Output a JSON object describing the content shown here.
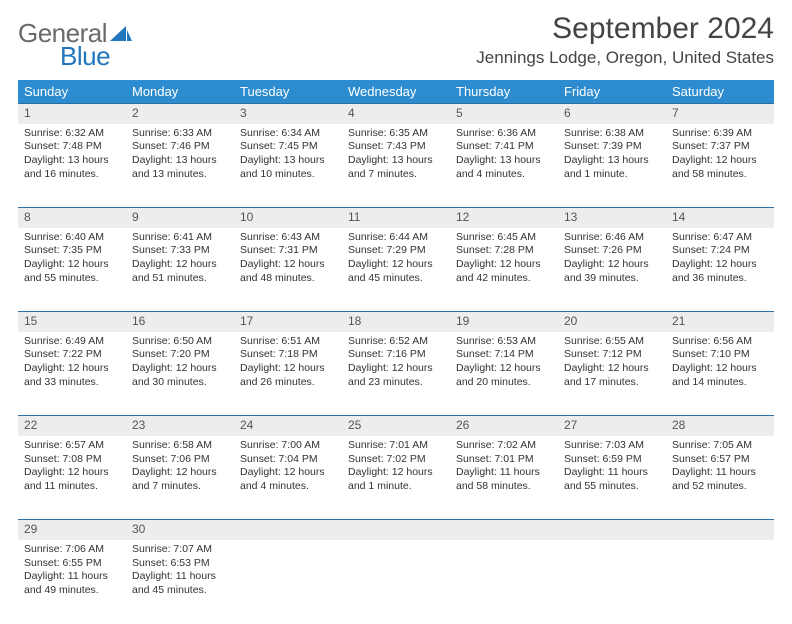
{
  "logo": {
    "text_general": "General",
    "text_blue": "Blue"
  },
  "header": {
    "month_title": "September 2024",
    "location": "Jennings Lodge, Oregon, United States"
  },
  "colors": {
    "header_bg": "#2c8ccf",
    "header_text": "#ffffff",
    "daynum_bg": "#ededed",
    "rule": "#2c6ea0",
    "logo_gray": "#6a6a6a",
    "logo_blue": "#2176bd"
  },
  "weekdays": [
    "Sunday",
    "Monday",
    "Tuesday",
    "Wednesday",
    "Thursday",
    "Friday",
    "Saturday"
  ],
  "weeks": [
    [
      {
        "n": "1",
        "sr": "6:32 AM",
        "ss": "7:48 PM",
        "dl": "13 hours and 16 minutes."
      },
      {
        "n": "2",
        "sr": "6:33 AM",
        "ss": "7:46 PM",
        "dl": "13 hours and 13 minutes."
      },
      {
        "n": "3",
        "sr": "6:34 AM",
        "ss": "7:45 PM",
        "dl": "13 hours and 10 minutes."
      },
      {
        "n": "4",
        "sr": "6:35 AM",
        "ss": "7:43 PM",
        "dl": "13 hours and 7 minutes."
      },
      {
        "n": "5",
        "sr": "6:36 AM",
        "ss": "7:41 PM",
        "dl": "13 hours and 4 minutes."
      },
      {
        "n": "6",
        "sr": "6:38 AM",
        "ss": "7:39 PM",
        "dl": "13 hours and 1 minute."
      },
      {
        "n": "7",
        "sr": "6:39 AM",
        "ss": "7:37 PM",
        "dl": "12 hours and 58 minutes."
      }
    ],
    [
      {
        "n": "8",
        "sr": "6:40 AM",
        "ss": "7:35 PM",
        "dl": "12 hours and 55 minutes."
      },
      {
        "n": "9",
        "sr": "6:41 AM",
        "ss": "7:33 PM",
        "dl": "12 hours and 51 minutes."
      },
      {
        "n": "10",
        "sr": "6:43 AM",
        "ss": "7:31 PM",
        "dl": "12 hours and 48 minutes."
      },
      {
        "n": "11",
        "sr": "6:44 AM",
        "ss": "7:29 PM",
        "dl": "12 hours and 45 minutes."
      },
      {
        "n": "12",
        "sr": "6:45 AM",
        "ss": "7:28 PM",
        "dl": "12 hours and 42 minutes."
      },
      {
        "n": "13",
        "sr": "6:46 AM",
        "ss": "7:26 PM",
        "dl": "12 hours and 39 minutes."
      },
      {
        "n": "14",
        "sr": "6:47 AM",
        "ss": "7:24 PM",
        "dl": "12 hours and 36 minutes."
      }
    ],
    [
      {
        "n": "15",
        "sr": "6:49 AM",
        "ss": "7:22 PM",
        "dl": "12 hours and 33 minutes."
      },
      {
        "n": "16",
        "sr": "6:50 AM",
        "ss": "7:20 PM",
        "dl": "12 hours and 30 minutes."
      },
      {
        "n": "17",
        "sr": "6:51 AM",
        "ss": "7:18 PM",
        "dl": "12 hours and 26 minutes."
      },
      {
        "n": "18",
        "sr": "6:52 AM",
        "ss": "7:16 PM",
        "dl": "12 hours and 23 minutes."
      },
      {
        "n": "19",
        "sr": "6:53 AM",
        "ss": "7:14 PM",
        "dl": "12 hours and 20 minutes."
      },
      {
        "n": "20",
        "sr": "6:55 AM",
        "ss": "7:12 PM",
        "dl": "12 hours and 17 minutes."
      },
      {
        "n": "21",
        "sr": "6:56 AM",
        "ss": "7:10 PM",
        "dl": "12 hours and 14 minutes."
      }
    ],
    [
      {
        "n": "22",
        "sr": "6:57 AM",
        "ss": "7:08 PM",
        "dl": "12 hours and 11 minutes."
      },
      {
        "n": "23",
        "sr": "6:58 AM",
        "ss": "7:06 PM",
        "dl": "12 hours and 7 minutes."
      },
      {
        "n": "24",
        "sr": "7:00 AM",
        "ss": "7:04 PM",
        "dl": "12 hours and 4 minutes."
      },
      {
        "n": "25",
        "sr": "7:01 AM",
        "ss": "7:02 PM",
        "dl": "12 hours and 1 minute."
      },
      {
        "n": "26",
        "sr": "7:02 AM",
        "ss": "7:01 PM",
        "dl": "11 hours and 58 minutes."
      },
      {
        "n": "27",
        "sr": "7:03 AM",
        "ss": "6:59 PM",
        "dl": "11 hours and 55 minutes."
      },
      {
        "n": "28",
        "sr": "7:05 AM",
        "ss": "6:57 PM",
        "dl": "11 hours and 52 minutes."
      }
    ],
    [
      {
        "n": "29",
        "sr": "7:06 AM",
        "ss": "6:55 PM",
        "dl": "11 hours and 49 minutes."
      },
      {
        "n": "30",
        "sr": "7:07 AM",
        "ss": "6:53 PM",
        "dl": "11 hours and 45 minutes."
      },
      null,
      null,
      null,
      null,
      null
    ]
  ],
  "labels": {
    "sunrise": "Sunrise:",
    "sunset": "Sunset:",
    "daylight": "Daylight:"
  }
}
